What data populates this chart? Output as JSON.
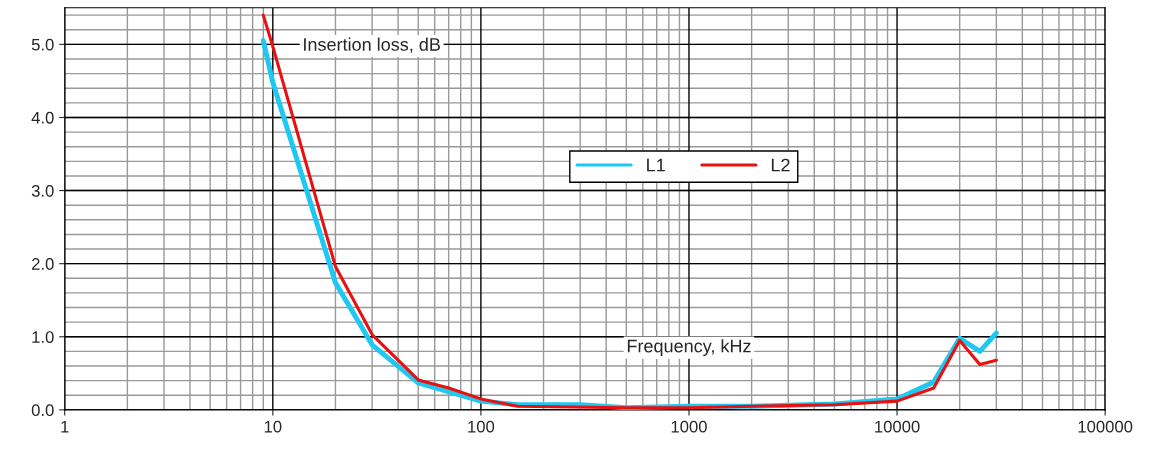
{
  "chart_data": {
    "type": "line",
    "xlabel": "Frequency, kHz",
    "ylabel": "Insertion loss, dB",
    "log": "x",
    "xlim": [
      1,
      100000
    ],
    "xticks": [
      1,
      10,
      100,
      1000,
      10000,
      100000
    ],
    "ylim": [
      0,
      5.5
    ],
    "yticks": [
      {
        "value": 0,
        "label": "0.0"
      },
      {
        "value": 1,
        "label": "1.0"
      },
      {
        "value": 2,
        "label": "2.0"
      },
      {
        "value": 3,
        "label": "3.0"
      },
      {
        "value": 4,
        "label": "4.0"
      },
      {
        "value": 5,
        "label": "5.0"
      }
    ],
    "grid": true,
    "legend": "center",
    "marker": "none",
    "line_style": "solid",
    "series": [
      {
        "name": "L1",
        "color": "#1ec8f0",
        "x": [
          9,
          10,
          20,
          30,
          50,
          100,
          150,
          300,
          500,
          1000,
          2000,
          5000,
          10000,
          15000,
          20000,
          25000,
          30000
        ],
        "values": [
          5.05,
          4.48,
          1.74,
          0.89,
          0.37,
          0.12,
          0.07,
          0.07,
          0.03,
          0.05,
          0.05,
          0.08,
          0.15,
          0.38,
          0.98,
          0.8,
          1.05
        ]
      },
      {
        "name": "L2",
        "color": "#e81010",
        "x": [
          9,
          10,
          20,
          30,
          50,
          70,
          100,
          150,
          500,
          1000,
          2000,
          5000,
          10000,
          15000,
          20000,
          25000,
          30000
        ],
        "values": [
          5.4,
          4.97,
          1.96,
          1.03,
          0.41,
          0.3,
          0.15,
          0.05,
          0.03,
          0.03,
          0.05,
          0.07,
          0.12,
          0.3,
          0.95,
          0.62,
          0.68
        ]
      }
    ]
  }
}
